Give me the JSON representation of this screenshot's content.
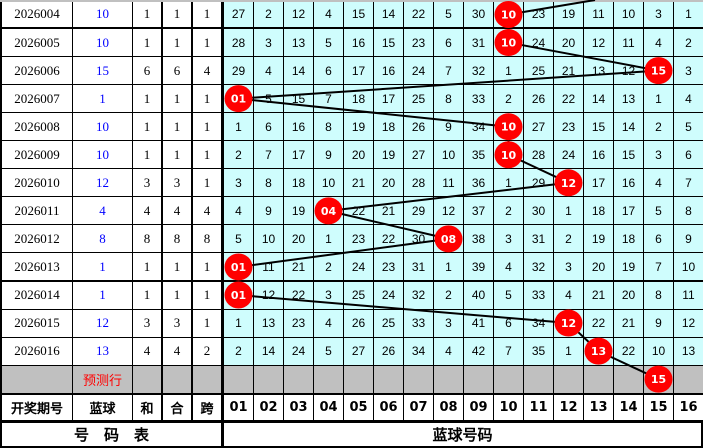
{
  "rows": [
    {
      "period": "2026004",
      "blue": "10",
      "he": "1",
      "hewei": "1",
      "kua": "1",
      "cells": [
        "27",
        "2",
        "12",
        "4",
        "15",
        "14",
        "22",
        "5",
        "30",
        "10",
        "23",
        "19",
        "11",
        "10",
        "3",
        "1"
      ],
      "ball_col": 10
    },
    {
      "period": "2026005",
      "blue": "10",
      "he": "1",
      "hewei": "1",
      "kua": "1",
      "cells": [
        "28",
        "3",
        "13",
        "5",
        "16",
        "15",
        "23",
        "6",
        "31",
        "10",
        "24",
        "20",
        "12",
        "11",
        "4",
        "2"
      ],
      "ball_col": 10
    },
    {
      "period": "2026006",
      "blue": "15",
      "he": "6",
      "hewei": "6",
      "kua": "4",
      "cells": [
        "29",
        "4",
        "14",
        "6",
        "17",
        "16",
        "24",
        "7",
        "32",
        "1",
        "25",
        "21",
        "13",
        "12",
        "15",
        "3"
      ],
      "ball_col": 15
    },
    {
      "period": "2026007",
      "blue": "1",
      "he": "1",
      "hewei": "1",
      "kua": "1",
      "cells": [
        "01",
        "5",
        "15",
        "7",
        "18",
        "17",
        "25",
        "8",
        "33",
        "2",
        "26",
        "22",
        "14",
        "13",
        "1",
        "4"
      ],
      "ball_col": 1
    },
    {
      "period": "2026008",
      "blue": "10",
      "he": "1",
      "hewei": "1",
      "kua": "1",
      "cells": [
        "1",
        "6",
        "16",
        "8",
        "19",
        "18",
        "26",
        "9",
        "34",
        "10",
        "27",
        "23",
        "15",
        "14",
        "2",
        "5"
      ],
      "ball_col": 10
    },
    {
      "period": "2026009",
      "blue": "10",
      "he": "1",
      "hewei": "1",
      "kua": "1",
      "cells": [
        "2",
        "7",
        "17",
        "9",
        "20",
        "19",
        "27",
        "10",
        "35",
        "10",
        "28",
        "24",
        "16",
        "15",
        "3",
        "6"
      ],
      "ball_col": 10
    },
    {
      "period": "2026010",
      "blue": "12",
      "he": "3",
      "hewei": "3",
      "kua": "1",
      "cells": [
        "3",
        "8",
        "18",
        "10",
        "21",
        "20",
        "28",
        "11",
        "36",
        "1",
        "29",
        "12",
        "17",
        "16",
        "4",
        "7"
      ],
      "ball_col": 12
    },
    {
      "period": "2026011",
      "blue": "4",
      "he": "4",
      "hewei": "4",
      "kua": "4",
      "cells": [
        "4",
        "9",
        "19",
        "04",
        "22",
        "21",
        "29",
        "12",
        "37",
        "2",
        "30",
        "1",
        "18",
        "17",
        "5",
        "8"
      ],
      "ball_col": 4
    },
    {
      "period": "2026012",
      "blue": "8",
      "he": "8",
      "hewei": "8",
      "kua": "8",
      "cells": [
        "5",
        "10",
        "20",
        "1",
        "23",
        "22",
        "30",
        "08",
        "38",
        "3",
        "31",
        "2",
        "19",
        "18",
        "6",
        "9"
      ],
      "ball_col": 8
    },
    {
      "period": "2026013",
      "blue": "1",
      "he": "1",
      "hewei": "1",
      "kua": "1",
      "cells": [
        "01",
        "11",
        "21",
        "2",
        "24",
        "23",
        "31",
        "1",
        "39",
        "4",
        "32",
        "3",
        "20",
        "19",
        "7",
        "10"
      ],
      "ball_col": 1
    },
    {
      "period": "2026014",
      "blue": "1",
      "he": "1",
      "hewei": "1",
      "kua": "1",
      "cells": [
        "01",
        "12",
        "22",
        "3",
        "25",
        "24",
        "32",
        "2",
        "40",
        "5",
        "33",
        "4",
        "21",
        "20",
        "8",
        "11"
      ],
      "ball_col": 1
    },
    {
      "period": "2026015",
      "blue": "12",
      "he": "3",
      "hewei": "3",
      "kua": "1",
      "cells": [
        "1",
        "13",
        "23",
        "4",
        "26",
        "25",
        "33",
        "3",
        "41",
        "6",
        "34",
        "12",
        "22",
        "21",
        "9",
        "12"
      ],
      "ball_col": 12
    },
    {
      "period": "2026016",
      "blue": "13",
      "he": "4",
      "hewei": "4",
      "kua": "2",
      "cells": [
        "2",
        "14",
        "24",
        "5",
        "27",
        "26",
        "34",
        "4",
        "42",
        "7",
        "35",
        "1",
        "13",
        "22",
        "10",
        "13"
      ],
      "ball_col": 13
    }
  ],
  "prediction": {
    "label": "预测行",
    "ball": "15",
    "ball_col": 15
  },
  "header": {
    "period": "开奖期号",
    "blue": "蓝球",
    "he": "和",
    "hewei": "合",
    "kua": "跨",
    "numbers": [
      "01",
      "02",
      "03",
      "04",
      "05",
      "06",
      "07",
      "08",
      "09",
      "10",
      "11",
      "12",
      "13",
      "14",
      "15",
      "16"
    ]
  },
  "footer": {
    "left": "号　码　表",
    "right": "蓝球号码"
  },
  "colors": {
    "ball": "#ff0000",
    "grid_bg": "#cffdfd",
    "blue_text": "#0000ff",
    "pred_bg": "#c0c0c0"
  }
}
